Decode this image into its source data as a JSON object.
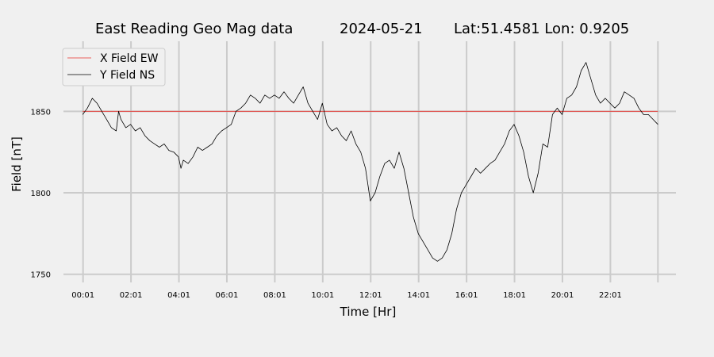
{
  "chart_data": {
    "type": "line",
    "title": {
      "main": "East Reading Geo Mag data",
      "date": "2024-05-21",
      "location": "Lat:51.4581  Lon: 0.9205"
    },
    "xlabel": "Time  [Hr]",
    "ylabel": "Field  [nT]",
    "x_unit": "hours",
    "xlim": [
      -0.8,
      24.75
    ],
    "ylim": [
      1745,
      1893
    ],
    "x_ticks": [
      {
        "value": 0.0167,
        "label": "00:01"
      },
      {
        "value": 2.0167,
        "label": "02:01"
      },
      {
        "value": 4.0167,
        "label": "04:01"
      },
      {
        "value": 6.0167,
        "label": "06:01"
      },
      {
        "value": 8.0167,
        "label": "08:01"
      },
      {
        "value": 10.0167,
        "label": "10:01"
      },
      {
        "value": 12.0167,
        "label": "12:01"
      },
      {
        "value": 14.0167,
        "label": "14:01"
      },
      {
        "value": 16.0167,
        "label": "16:01"
      },
      {
        "value": 18.0167,
        "label": "18:01"
      },
      {
        "value": 20.0167,
        "label": "20:01"
      },
      {
        "value": 22.0167,
        "label": "22:01"
      },
      {
        "value": 24.0,
        "label": ""
      }
    ],
    "y_ticks": [
      {
        "value": 1750,
        "label": "1750"
      },
      {
        "value": 1800,
        "label": "1800"
      },
      {
        "value": 1850,
        "label": "1850"
      }
    ],
    "grid": true,
    "legend_position": "top-left",
    "series": [
      {
        "name": "X Field EW",
        "color": "#e8302a",
        "x": [
          0,
          24
        ],
        "y": [
          1850,
          1850
        ]
      },
      {
        "name": "Y Field NS",
        "color": "#000000",
        "x": [
          0.0,
          0.2,
          0.4,
          0.6,
          0.8,
          1.0,
          1.2,
          1.4,
          1.5,
          1.6,
          1.8,
          2.0,
          2.2,
          2.4,
          2.6,
          2.8,
          3.0,
          3.2,
          3.4,
          3.6,
          3.8,
          4.0,
          4.1,
          4.2,
          4.4,
          4.6,
          4.8,
          5.0,
          5.2,
          5.4,
          5.6,
          5.8,
          6.0,
          6.2,
          6.4,
          6.6,
          6.8,
          7.0,
          7.2,
          7.4,
          7.6,
          7.8,
          8.0,
          8.2,
          8.4,
          8.6,
          8.8,
          9.0,
          9.2,
          9.4,
          9.6,
          9.8,
          10.0,
          10.2,
          10.4,
          10.6,
          10.8,
          11.0,
          11.2,
          11.4,
          11.6,
          11.8,
          12.0,
          12.2,
          12.4,
          12.6,
          12.8,
          13.0,
          13.2,
          13.4,
          13.6,
          13.8,
          14.0,
          14.2,
          14.4,
          14.6,
          14.8,
          15.0,
          15.2,
          15.4,
          15.6,
          15.8,
          16.0,
          16.2,
          16.4,
          16.6,
          16.8,
          17.0,
          17.2,
          17.4,
          17.6,
          17.8,
          18.0,
          18.2,
          18.4,
          18.6,
          18.8,
          19.0,
          19.2,
          19.4,
          19.6,
          19.8,
          20.0,
          20.2,
          20.4,
          20.6,
          20.8,
          21.0,
          21.2,
          21.4,
          21.6,
          21.8,
          22.0,
          22.2,
          22.4,
          22.6,
          22.8,
          23.0,
          23.2,
          23.4,
          23.6,
          23.8,
          24.0
        ],
        "y": [
          1848,
          1852,
          1858,
          1855,
          1850,
          1845,
          1840,
          1838,
          1850,
          1845,
          1840,
          1842,
          1838,
          1840,
          1835,
          1832,
          1830,
          1828,
          1830,
          1826,
          1825,
          1822,
          1815,
          1820,
          1818,
          1822,
          1828,
          1826,
          1828,
          1830,
          1835,
          1838,
          1840,
          1842,
          1850,
          1852,
          1855,
          1860,
          1858,
          1855,
          1860,
          1858,
          1860,
          1858,
          1862,
          1858,
          1855,
          1860,
          1865,
          1855,
          1850,
          1845,
          1855,
          1842,
          1838,
          1840,
          1835,
          1832,
          1838,
          1830,
          1825,
          1815,
          1795,
          1800,
          1810,
          1818,
          1820,
          1815,
          1825,
          1815,
          1800,
          1785,
          1775,
          1770,
          1765,
          1760,
          1758,
          1760,
          1765,
          1775,
          1790,
          1800,
          1805,
          1810,
          1815,
          1812,
          1815,
          1818,
          1820,
          1825,
          1830,
          1838,
          1842,
          1835,
          1825,
          1810,
          1800,
          1812,
          1830,
          1828,
          1848,
          1852,
          1848,
          1858,
          1860,
          1865,
          1875,
          1880,
          1870,
          1860,
          1855,
          1858,
          1855,
          1852,
          1855,
          1862,
          1860,
          1858,
          1852,
          1848,
          1848,
          1845,
          1842
        ]
      }
    ]
  }
}
